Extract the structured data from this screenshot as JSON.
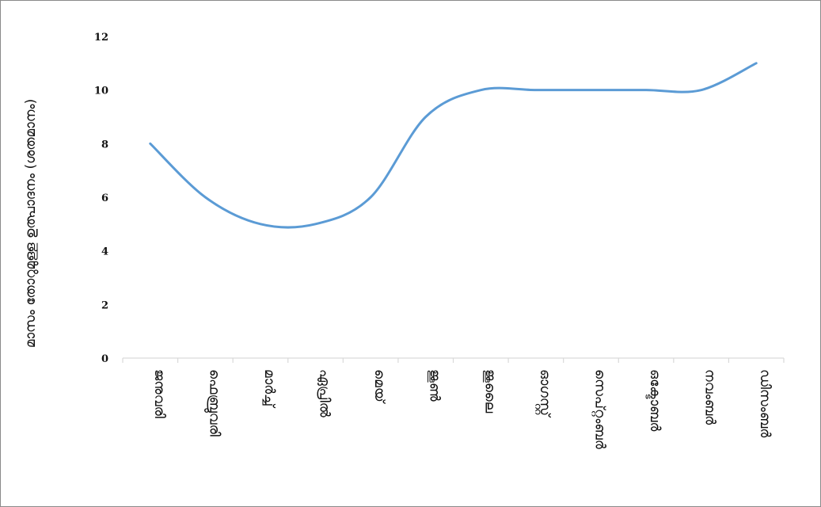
{
  "chart_data": {
    "type": "line",
    "categories": [
      "ജനുവരി",
      "ഫെബ്രുവരി",
      "മാർച്ച്",
      "ഏപ്രിൽ",
      "മെയ്",
      "ജൂൺ",
      "ജൂലൈ",
      "ഓഗസ്റ്റ്",
      "സെപ്റ്റംബർ",
      "ഒക്ടോബർ",
      "നവംബർ",
      "ഡിസംബർ"
    ],
    "series": [
      {
        "values": [
          8,
          6,
          5,
          5,
          6,
          9,
          10,
          10,
          10,
          10,
          10,
          11
        ]
      }
    ],
    "ylabel": "മാസം തോറുമുള്ള ഉത്പാദനം (ശതമാനം)",
    "xlabel": "",
    "ylim": [
      0,
      12
    ],
    "yticks": [
      0,
      2,
      4,
      6,
      8,
      10,
      12
    ],
    "grid": false,
    "smooth": true,
    "line_color": "#5b9bd5",
    "axis_color": "#d9d9d9"
  }
}
